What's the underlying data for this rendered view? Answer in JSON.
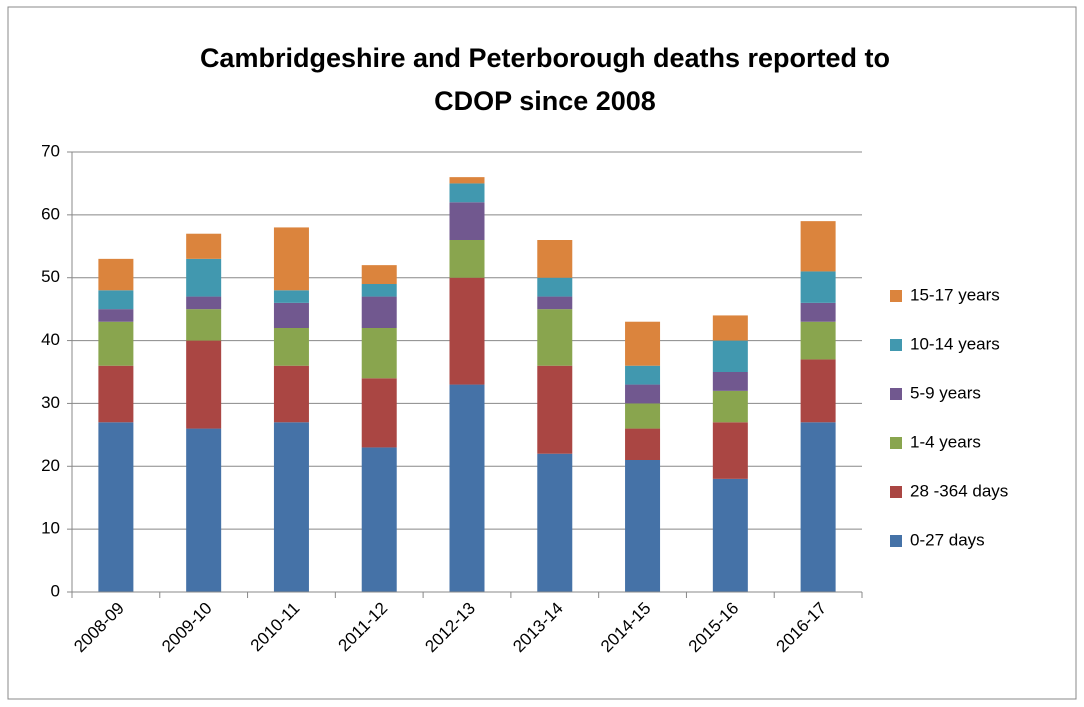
{
  "chart_data": {
    "type": "stacked_bar",
    "title_lines": [
      "Cambridgeshire and Peterborough deaths reported to",
      "CDOP since 2008"
    ],
    "categories": [
      "2008-09",
      "2009-10",
      "2010-11",
      "2011-12",
      "2012-13",
      "2013-14",
      "2014-15",
      "2015-16",
      "2016-17"
    ],
    "series": [
      {
        "name": "0-27 days",
        "color": "#4572a7",
        "values": [
          27,
          26,
          27,
          23,
          33,
          22,
          21,
          18,
          27
        ]
      },
      {
        "name": "28 -364 days",
        "color": "#aa4643",
        "values": [
          9,
          14,
          9,
          11,
          17,
          14,
          5,
          9,
          10
        ]
      },
      {
        "name": "1-4 years",
        "color": "#89a54e",
        "values": [
          7,
          5,
          6,
          8,
          6,
          9,
          4,
          5,
          6
        ]
      },
      {
        "name": "5-9 years",
        "color": "#71588f",
        "values": [
          2,
          2,
          4,
          5,
          6,
          2,
          3,
          3,
          3
        ]
      },
      {
        "name": "10-14 years",
        "color": "#4198af",
        "values": [
          3,
          6,
          2,
          2,
          3,
          3,
          3,
          5,
          5
        ]
      },
      {
        "name": "15-17 years",
        "color": "#db843d",
        "values": [
          5,
          4,
          10,
          3,
          1,
          6,
          7,
          4,
          8
        ]
      }
    ],
    "ylim": [
      0,
      70
    ],
    "yticks": [
      0,
      10,
      20,
      30,
      40,
      50,
      60,
      70
    ],
    "grid": true,
    "legend": "right"
  }
}
